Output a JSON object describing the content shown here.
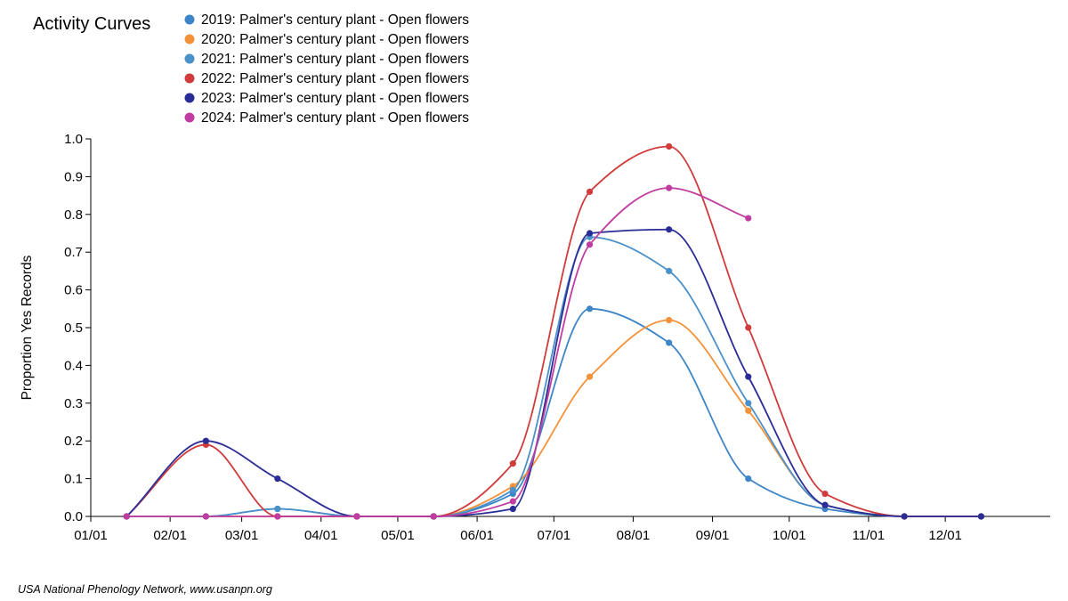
{
  "title": "Activity Curves",
  "footer": "USA National Phenology Network, www.usanpn.org",
  "chart_data": {
    "type": "line",
    "title": "Activity Curves",
    "xlabel": "",
    "ylabel": "Proportion Yes Records",
    "ylim": [
      0,
      1.0
    ],
    "yticks": [
      "0.0",
      "0.1",
      "0.2",
      "0.3",
      "0.4",
      "0.5",
      "0.6",
      "0.7",
      "0.8",
      "0.9",
      "1.0"
    ],
    "xticks": [
      "01/01",
      "02/01",
      "03/01",
      "04/01",
      "05/01",
      "06/01",
      "07/01",
      "08/01",
      "09/01",
      "10/01",
      "11/01",
      "12/01"
    ],
    "grid": false,
    "legend_position": "top",
    "series": [
      {
        "name": "2019: Palmer's century plant - Open flowers",
        "color": "#3d85c6",
        "points": [
          [
            "01/15",
            0
          ],
          [
            "02/15",
            0
          ],
          [
            "03/15",
            0.02
          ],
          [
            "04/15",
            0
          ],
          [
            "05/15",
            0
          ],
          [
            "06/15",
            0.06
          ],
          [
            "07/15",
            0.55
          ],
          [
            "08/15",
            0.46
          ],
          [
            "09/15",
            0.1
          ],
          [
            "10/15",
            0.02
          ],
          [
            "11/15",
            0
          ],
          [
            "12/15",
            0
          ]
        ]
      },
      {
        "name": "2020: Palmer's century plant - Open flowers",
        "color": "#f4923a",
        "points": [
          [
            "01/15",
            0
          ],
          [
            "02/15",
            0
          ],
          [
            "03/15",
            0
          ],
          [
            "04/15",
            0
          ],
          [
            "05/15",
            0
          ],
          [
            "06/15",
            0.08
          ],
          [
            "07/15",
            0.37
          ],
          [
            "08/15",
            0.52
          ],
          [
            "09/15",
            0.28
          ],
          [
            "10/15",
            0.03
          ],
          [
            "11/15",
            0
          ],
          [
            "12/15",
            0
          ]
        ]
      },
      {
        "name": "2021: Palmer's century plant - Open flowers",
        "color": "#4a90c9",
        "points": [
          [
            "01/15",
            0
          ],
          [
            "02/15",
            0
          ],
          [
            "03/15",
            0.02
          ],
          [
            "04/15",
            0
          ],
          [
            "05/15",
            0
          ],
          [
            "06/15",
            0.07
          ],
          [
            "07/15",
            0.74
          ],
          [
            "08/15",
            0.65
          ],
          [
            "09/15",
            0.3
          ],
          [
            "10/15",
            0.03
          ],
          [
            "11/15",
            0
          ],
          [
            "12/15",
            0
          ]
        ]
      },
      {
        "name": "2022: Palmer's century plant - Open flowers",
        "color": "#d03b3b",
        "points": [
          [
            "01/15",
            0
          ],
          [
            "02/15",
            0.19
          ],
          [
            "03/15",
            0
          ],
          [
            "04/15",
            0
          ],
          [
            "05/15",
            0
          ],
          [
            "06/15",
            0.14
          ],
          [
            "07/15",
            0.86
          ],
          [
            "08/15",
            0.98
          ],
          [
            "09/15",
            0.5
          ],
          [
            "10/15",
            0.06
          ],
          [
            "11/15",
            0
          ],
          [
            "12/15",
            0
          ]
        ]
      },
      {
        "name": "2023: Palmer's century plant - Open flowers",
        "color": "#2b2d96",
        "points": [
          [
            "01/15",
            0
          ],
          [
            "02/15",
            0.2
          ],
          [
            "03/15",
            0.1
          ],
          [
            "04/15",
            0
          ],
          [
            "05/15",
            0
          ],
          [
            "06/15",
            0.02
          ],
          [
            "07/15",
            0.75
          ],
          [
            "08/15",
            0.76
          ],
          [
            "09/15",
            0.37
          ],
          [
            "10/15",
            0.03
          ],
          [
            "11/15",
            0
          ],
          [
            "12/15",
            0
          ]
        ]
      },
      {
        "name": "2024: Palmer's century plant - Open flowers",
        "color": "#c03ca0",
        "points": [
          [
            "01/15",
            0
          ],
          [
            "02/15",
            0
          ],
          [
            "03/15",
            0
          ],
          [
            "04/15",
            0
          ],
          [
            "05/15",
            0
          ],
          [
            "06/15",
            0.04
          ],
          [
            "07/15",
            0.72
          ],
          [
            "08/15",
            0.87
          ],
          [
            "09/15",
            0.79
          ]
        ]
      }
    ]
  }
}
